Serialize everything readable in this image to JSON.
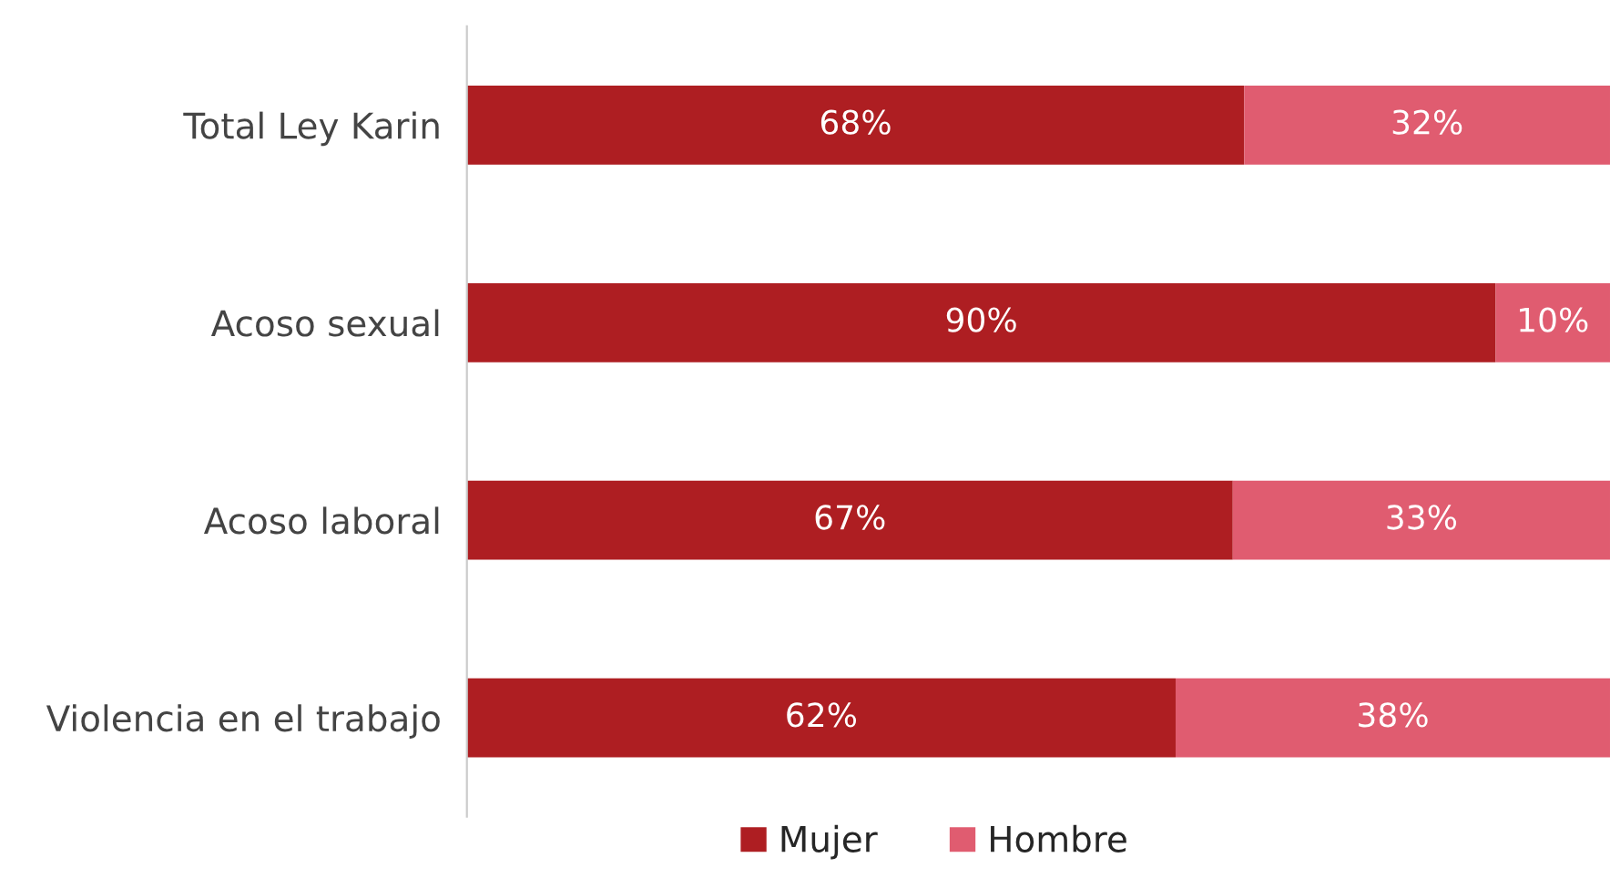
{
  "chart_data": {
    "type": "bar",
    "orientation": "horizontal",
    "stacked": true,
    "categories": [
      "Total Ley Karin",
      "Acoso sexual",
      "Acoso laboral",
      "Violencia en el trabajo"
    ],
    "series": [
      {
        "name": "Mujer",
        "color": "#ae1e22",
        "values": [
          68,
          90,
          67,
          62
        ],
        "value_labels": [
          "68%",
          "90%",
          "67%",
          "62%"
        ]
      },
      {
        "name": "Hombre",
        "color": "#e05c70",
        "values": [
          32,
          10,
          33,
          38
        ],
        "value_labels": [
          "32%",
          "10%",
          "33%",
          "38%"
        ]
      }
    ],
    "legend": "bottom",
    "grid": false
  }
}
